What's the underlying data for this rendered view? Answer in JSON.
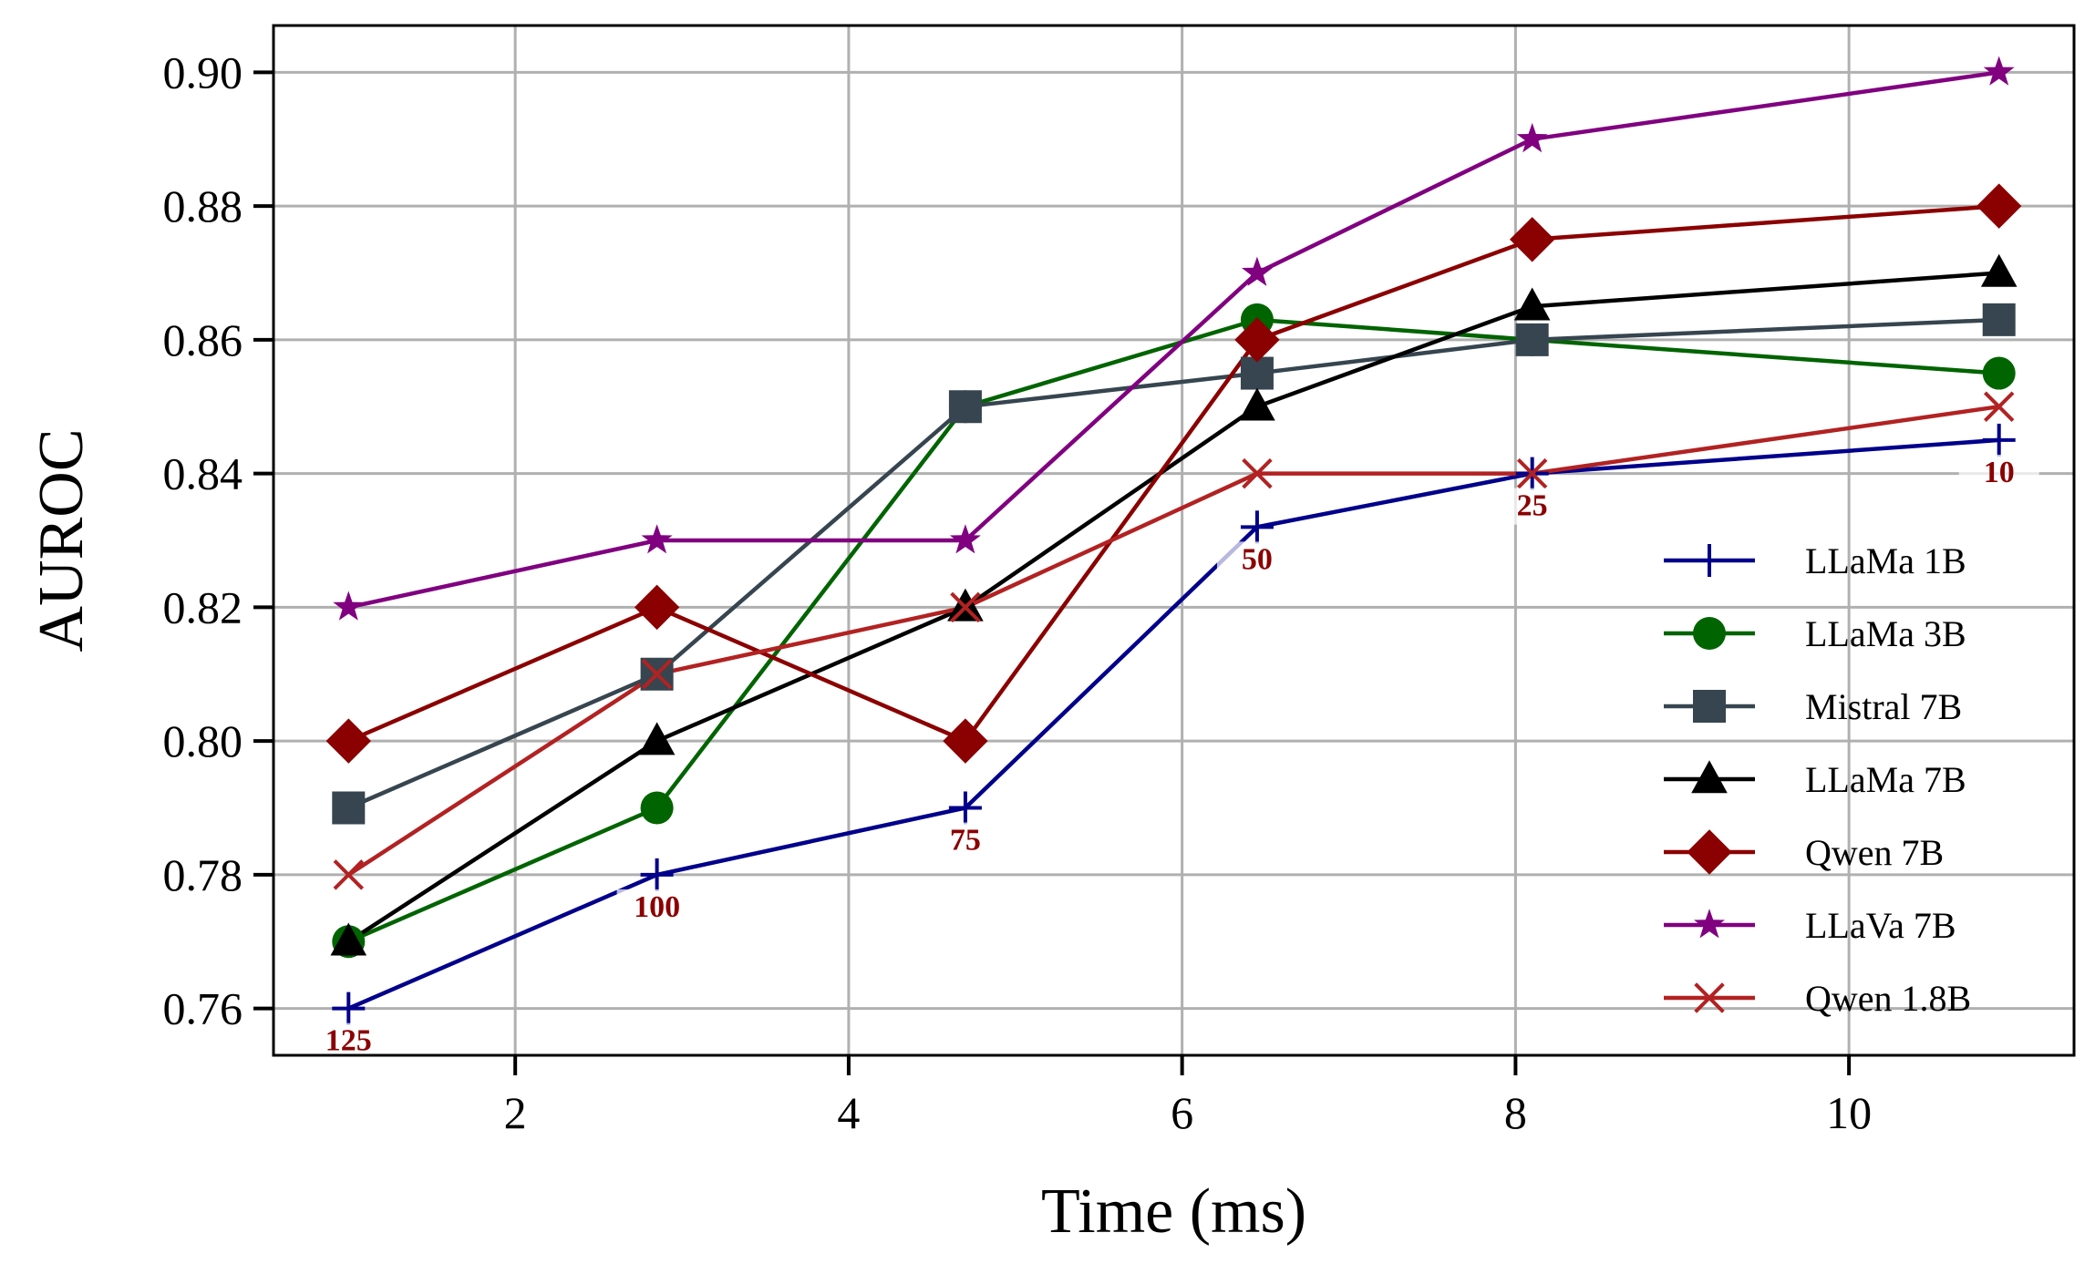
{
  "chart_data": {
    "type": "line",
    "title": "",
    "xlabel": "Time (ms)",
    "ylabel": "AUROC",
    "xlim": [
      0.55,
      11.35
    ],
    "ylim": [
      0.753,
      0.907
    ],
    "xticks": [
      2,
      4,
      6,
      8,
      10
    ],
    "yticks": [
      0.76,
      0.78,
      0.8,
      0.82,
      0.84,
      0.86,
      0.88,
      0.9
    ],
    "xtick_labels": [
      "2",
      "4",
      "6",
      "8",
      "10"
    ],
    "ytick_labels": [
      "0.76",
      "0.78",
      "0.80",
      "0.82",
      "0.84",
      "0.86",
      "0.88",
      "0.90"
    ],
    "grid": true,
    "legend_position": "lower-right",
    "point_label_color": "#8b0000",
    "point_labels": [
      {
        "x": 1.0,
        "y": 0.76,
        "text": "125"
      },
      {
        "x": 2.85,
        "y": 0.78,
        "text": "100"
      },
      {
        "x": 4.7,
        "y": 0.79,
        "text": "75"
      },
      {
        "x": 6.45,
        "y": 0.832,
        "text": "50"
      },
      {
        "x": 8.1,
        "y": 0.84,
        "text": "25"
      },
      {
        "x": 10.9,
        "y": 0.845,
        "text": "10"
      }
    ],
    "series": [
      {
        "name": "LLaMa 1B",
        "color": "#00008b",
        "marker": "plus",
        "x": [
          1.0,
          2.85,
          4.7,
          6.45,
          8.1,
          10.9
        ],
        "y": [
          0.76,
          0.78,
          0.79,
          0.832,
          0.84,
          0.845
        ]
      },
      {
        "name": "LLaMa 3B",
        "color": "#006400",
        "marker": "circle",
        "x": [
          1.0,
          2.85,
          4.7,
          6.45,
          8.1,
          10.9
        ],
        "y": [
          0.77,
          0.79,
          0.85,
          0.863,
          0.86,
          0.855
        ]
      },
      {
        "name": "Mistral 7B",
        "color": "#36454f",
        "marker": "square",
        "x": [
          1.0,
          2.85,
          4.7,
          6.45,
          8.1,
          10.9
        ],
        "y": [
          0.79,
          0.81,
          0.85,
          0.855,
          0.86,
          0.863
        ]
      },
      {
        "name": "LLaMa 7B",
        "color": "#000000",
        "marker": "triangle",
        "x": [
          1.0,
          2.85,
          4.7,
          6.45,
          8.1,
          10.9
        ],
        "y": [
          0.77,
          0.8,
          0.82,
          0.85,
          0.865,
          0.87
        ]
      },
      {
        "name": "Qwen 7B",
        "color": "#8b0000",
        "marker": "diamond",
        "x": [
          1.0,
          2.85,
          4.7,
          6.45,
          8.1,
          10.9
        ],
        "y": [
          0.8,
          0.82,
          0.8,
          0.86,
          0.875,
          0.88
        ]
      },
      {
        "name": "LLaVa 7B",
        "color": "#800080",
        "marker": "star",
        "x": [
          1.0,
          2.85,
          4.7,
          6.45,
          8.1,
          10.9
        ],
        "y": [
          0.82,
          0.83,
          0.83,
          0.87,
          0.89,
          0.9
        ]
      },
      {
        "name": "Qwen 1.8B",
        "color": "#b22222",
        "marker": "x",
        "x": [
          1.0,
          2.85,
          4.7,
          6.45,
          8.1,
          10.9
        ],
        "y": [
          0.78,
          0.81,
          0.82,
          0.84,
          0.84,
          0.85
        ]
      }
    ]
  }
}
